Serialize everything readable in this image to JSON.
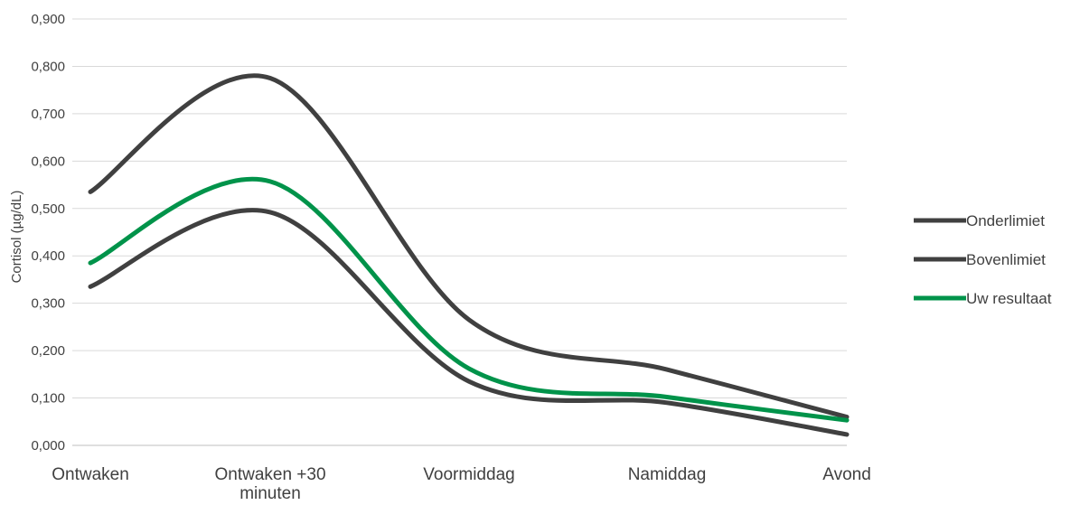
{
  "chart_data": {
    "type": "line",
    "categories": [
      "Ontwaken",
      "Ontwaken +30 minuten",
      "Voormiddag",
      "Namiddag",
      "Avond"
    ],
    "category_lines": [
      [
        "Ontwaken"
      ],
      [
        "Ontwaken +30",
        "minuten"
      ],
      [
        "Voormiddag"
      ],
      [
        "Namiddag"
      ],
      [
        "Avond"
      ]
    ],
    "ylabel": "Cortisol (µg/dL)",
    "ylim": [
      0,
      0.9
    ],
    "yticks": [
      0,
      0.1,
      0.2,
      0.3,
      0.4,
      0.5,
      0.6,
      0.7,
      0.8,
      0.9
    ],
    "ytick_labels": [
      "0,000",
      "0,100",
      "0,200",
      "0,300",
      "0,400",
      "0,500",
      "0,600",
      "0,700",
      "0,800",
      "0,900"
    ],
    "grid": true,
    "legend_position": "right",
    "series": [
      {
        "name": "Onderlimiet",
        "color": "#404040",
        "values": [
          0.535,
          0.775,
          0.265,
          0.16,
          0.06
        ]
      },
      {
        "name": "Bovenlimiet",
        "color": "#404040",
        "values": [
          0.335,
          0.492,
          0.135,
          0.09,
          0.023
        ]
      },
      {
        "name": "Uw resultaat",
        "color": "#00934a",
        "values": [
          0.385,
          0.557,
          0.162,
          0.102,
          0.053
        ]
      }
    ]
  }
}
